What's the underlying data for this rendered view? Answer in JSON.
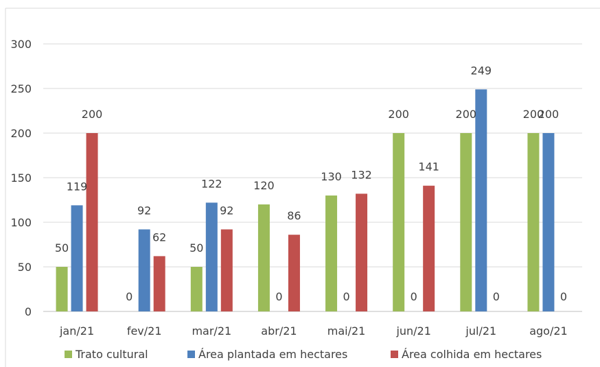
{
  "colors": {
    "trato": "#9BBB59",
    "plantada": "#4F81BD",
    "colhida": "#C0504D",
    "grid": "#D9D9D9",
    "text": "#404040"
  },
  "chart_data": {
    "type": "bar",
    "title": "",
    "xlabel": "",
    "ylabel": "",
    "ylim": [
      0,
      300
    ],
    "yticks": [
      0,
      50,
      100,
      150,
      200,
      250,
      300
    ],
    "grid": true,
    "legend_position": "bottom",
    "categories": [
      "jan/21",
      "fev/21",
      "mar/21",
      "abr/21",
      "mai/21",
      "jun/21",
      "jul/21",
      "ago/21"
    ],
    "series": [
      {
        "name": "Trato cultural",
        "color": "#9BBB59",
        "values": [
          50,
          0,
          50,
          120,
          130,
          200,
          200,
          200
        ]
      },
      {
        "name": "Área plantada em hectares",
        "color": "#4F81BD",
        "values": [
          119,
          92,
          122,
          0,
          0,
          0,
          249,
          200
        ]
      },
      {
        "name": "Área colhida em hectares",
        "color": "#C0504D",
        "values": [
          200,
          62,
          92,
          86,
          132,
          141,
          0,
          0
        ]
      }
    ],
    "data_labels": [
      [
        "50",
        "119",
        "200"
      ],
      [
        "0",
        "92",
        "62"
      ],
      [
        "50",
        "122",
        "92"
      ],
      [
        "120",
        "0",
        "86"
      ],
      [
        "130",
        "0",
        "132"
      ],
      [
        "200",
        "0",
        "141"
      ],
      [
        "200",
        "249",
        "0"
      ],
      [
        "200",
        "200",
        "0"
      ]
    ]
  }
}
